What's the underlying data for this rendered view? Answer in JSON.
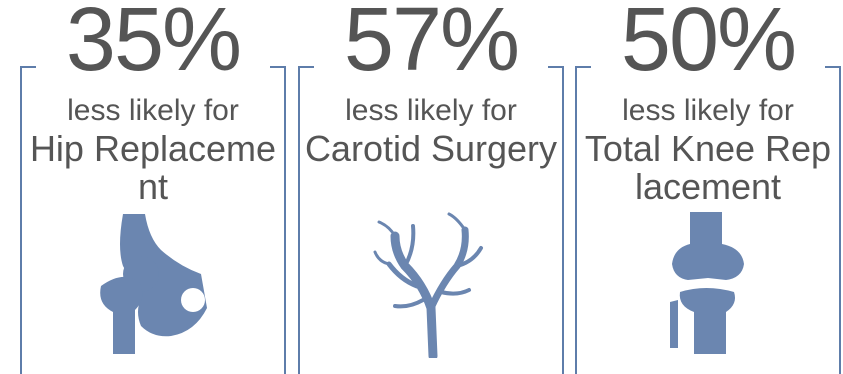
{
  "accent_color": "#5e7daa",
  "text_color": "#555555",
  "stats": [
    {
      "percent": "35%",
      "lead": "less likely for",
      "procedure": "Hip Replacement",
      "icon": "hip-bone-icon"
    },
    {
      "percent": "57%",
      "lead": "less likely for",
      "procedure": "Carotid Surgery",
      "icon": "carotid-artery-icon"
    },
    {
      "percent": "50%",
      "lead": "less likely for",
      "procedure": "Total Knee Replacement",
      "icon": "knee-joint-icon"
    }
  ]
}
